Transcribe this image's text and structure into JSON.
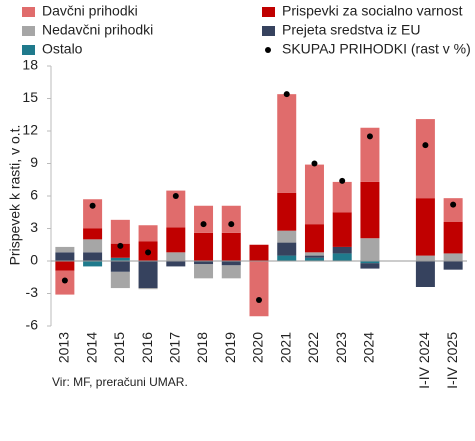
{
  "chart_data": {
    "type": "stacked-bar",
    "ylabel": "Prispevek k rasti, v o.t.",
    "source": "Vir: MF, preračuni UMAR.",
    "categories": [
      "2013",
      "2014",
      "2015",
      "2016",
      "2017",
      "2018",
      "2019",
      "2020",
      "2021",
      "2022",
      "2023",
      "2024",
      null,
      "I-IV 2024",
      "I-IV 2025"
    ],
    "series": [
      {
        "name": "Davčni prihodki",
        "color": "#e06c6c",
        "values": [
          -2.2,
          2.7,
          2.2,
          1.5,
          3.4,
          2.5,
          2.5,
          -5.1,
          9.1,
          5.5,
          2.8,
          5.0,
          null,
          7.3,
          2.2
        ]
      },
      {
        "name": "Prispevki za socialno varnost",
        "color": "#c00000",
        "values": [
          -0.9,
          1.0,
          1.3,
          1.8,
          2.3,
          2.6,
          2.6,
          1.5,
          3.5,
          2.6,
          3.2,
          5.2,
          null,
          5.3,
          2.9
        ]
      },
      {
        "name": "Nedavčni prihodki",
        "color": "#a6a6a6",
        "values": [
          0.5,
          1.2,
          -1.5,
          -0.1,
          0.8,
          -1.3,
          -1.2,
          0,
          1.1,
          0.3,
          0,
          2.1,
          null,
          0.5,
          0.7
        ]
      },
      {
        "name": "Prejeta sredstva iz EU",
        "color": "#36425e",
        "values": [
          0.8,
          0.8,
          -1.0,
          -2.5,
          -0.5,
          -0.3,
          -0.4,
          0,
          1.2,
          0.2,
          0.6,
          -0.5,
          null,
          -2.4,
          -0.8
        ]
      },
      {
        "name": "Ostalo",
        "color": "#1f7a8c",
        "values": [
          0,
          -0.5,
          0.3,
          0,
          0,
          0,
          0,
          0,
          0.5,
          0.3,
          0.7,
          -0.2,
          null,
          0,
          0
        ]
      }
    ],
    "total": {
      "name": "SKUPAJ PRIHODKI (rast v %)",
      "color": "#000000",
      "values": [
        -1.8,
        5.1,
        1.4,
        0.8,
        6.0,
        3.4,
        3.4,
        -3.6,
        15.4,
        9.0,
        7.4,
        11.5,
        null,
        10.7,
        5.2
      ]
    },
    "ylim": [
      -6,
      18
    ],
    "yticks": [
      -6,
      -3,
      0,
      3,
      6,
      9,
      12,
      15,
      18
    ]
  }
}
